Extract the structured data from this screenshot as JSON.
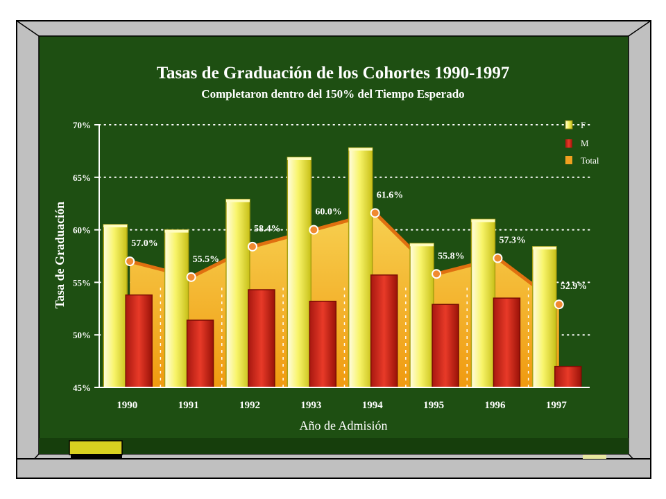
{
  "chart_data": {
    "type": "bar",
    "title": "Tasas de Graduación de los Cohortes 1990-1997",
    "subtitle": "Completaron dentro del 150% del Tiempo Esperado",
    "xlabel": "Año de Admisión",
    "ylabel": "Tasa de Graduación",
    "categories": [
      "1990",
      "1991",
      "1992",
      "1993",
      "1994",
      "1995",
      "1996",
      "1997"
    ],
    "ylim": [
      45,
      70
    ],
    "yticks": [
      45,
      50,
      55,
      60,
      65,
      70
    ],
    "ytick_labels": [
      "45%",
      "50%",
      "55%",
      "60%",
      "65%",
      "70%"
    ],
    "grid": true,
    "legend_position": "top-right",
    "series": [
      {
        "name": "F",
        "kind": "bar",
        "color": "#f4f060",
        "values": [
          60.5,
          60.0,
          62.9,
          66.9,
          67.8,
          58.7,
          61.0,
          58.4
        ]
      },
      {
        "name": "M",
        "kind": "bar",
        "color": "#d62a20",
        "values": [
          53.8,
          51.4,
          54.3,
          53.2,
          55.7,
          52.9,
          53.5,
          47.0
        ]
      },
      {
        "name": "Total",
        "kind": "area-line",
        "color": "#f0a020",
        "values": [
          57.0,
          55.5,
          58.4,
          60.0,
          61.6,
          55.8,
          57.3,
          52.9
        ],
        "labels": [
          "57.0%",
          "55.5%",
          "58.4%",
          "60.0%",
          "61.6%",
          "55.8%",
          "57.3%",
          "52.9%"
        ]
      }
    ]
  },
  "colors": {
    "board": "#1e4f12",
    "frame": "#c0c0c0",
    "text": "#ffffff"
  }
}
